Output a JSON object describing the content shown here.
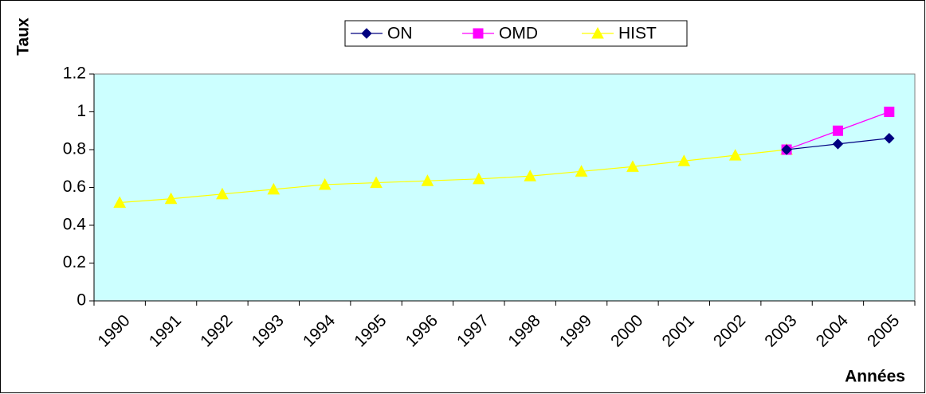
{
  "chart_data": {
    "type": "line",
    "y_label": "Taux",
    "x_label": "Années",
    "categories": [
      "1990",
      "1991",
      "1992",
      "1993",
      "1994",
      "1995",
      "1996",
      "1997",
      "1998",
      "1999",
      "2000",
      "2001",
      "2002",
      "2003",
      "2004",
      "2005"
    ],
    "series": [
      {
        "name": "ON",
        "color": "#000080",
        "marker": "diamond",
        "values": [
          null,
          null,
          null,
          null,
          null,
          null,
          null,
          null,
          null,
          null,
          null,
          null,
          null,
          0.8,
          0.83,
          0.86
        ]
      },
      {
        "name": "OMD",
        "color": "#ff00ff",
        "marker": "square",
        "values": [
          null,
          null,
          null,
          null,
          null,
          null,
          null,
          null,
          null,
          null,
          null,
          null,
          null,
          0.8,
          0.9,
          1.0
        ]
      },
      {
        "name": "HIST",
        "color": "#ffff00",
        "marker": "triangle",
        "values": [
          0.52,
          0.54,
          0.565,
          0.59,
          0.615,
          0.625,
          0.635,
          0.645,
          0.66,
          0.685,
          0.71,
          0.74,
          0.77,
          0.8,
          null,
          null
        ]
      }
    ],
    "ylim": [
      0,
      1.2
    ],
    "yticks": [
      0,
      0.2,
      0.4,
      0.6,
      0.8,
      1,
      1.2
    ],
    "plot_background": "#ccffff",
    "legend": "top"
  }
}
